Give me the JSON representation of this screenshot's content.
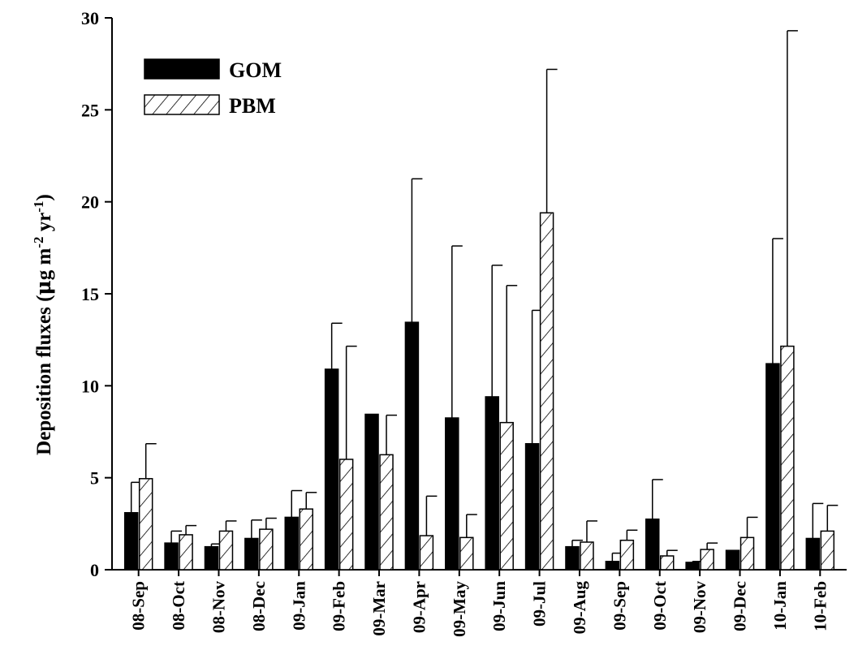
{
  "chart_data": {
    "type": "bar",
    "ylabel_prefix": "Deposition fluxes (",
    "ylabel_mu": "μ",
    "ylabel_g": "g m",
    "ylabel_sup1": "-2",
    "ylabel_yr": " yr",
    "ylabel_sup2": "-1",
    "ylabel_suffix": ")",
    "xlabel": "",
    "ylim": [
      0,
      30
    ],
    "yticks": [
      0,
      5,
      10,
      15,
      20,
      25,
      30
    ],
    "legend_position": "top-left",
    "categories": [
      "08-Sep",
      "08-Oct",
      "08-Nov",
      "08-Dec",
      "09-Jan",
      "09-Feb",
      "09-Mar",
      "09-Apr",
      "09-May",
      "09-Jun",
      "09-Jul",
      "09-Aug",
      "09-Sep",
      "09-Oct",
      "09-Nov",
      "09-Dec",
      "10-Jan",
      "10-Feb"
    ],
    "series": [
      {
        "name": "GOM",
        "fill": "solid",
        "color": "#000000",
        "values": [
          3.1,
          1.45,
          1.25,
          1.7,
          2.85,
          10.9,
          8.45,
          13.45,
          8.25,
          9.4,
          6.85,
          1.25,
          0.45,
          2.75,
          0.4,
          1.05,
          11.2,
          1.7
        ],
        "errors": [
          1.65,
          0.65,
          0.15,
          1.0,
          1.45,
          2.5,
          0.0,
          7.8,
          9.35,
          7.15,
          7.25,
          0.35,
          0.45,
          2.15,
          0.05,
          0.0,
          6.8,
          1.9
        ]
      },
      {
        "name": "PBM",
        "fill": "hatch",
        "color": "#000000",
        "values": [
          4.95,
          1.9,
          2.1,
          2.2,
          3.3,
          6.0,
          6.25,
          1.85,
          1.75,
          8.0,
          19.4,
          1.5,
          1.6,
          0.75,
          1.1,
          1.75,
          12.15,
          2.1
        ],
        "errors": [
          1.9,
          0.5,
          0.55,
          0.6,
          0.9,
          6.15,
          2.15,
          2.15,
          1.25,
          7.45,
          7.8,
          1.15,
          0.55,
          0.3,
          0.35,
          1.1,
          17.15,
          1.4
        ]
      }
    ]
  }
}
